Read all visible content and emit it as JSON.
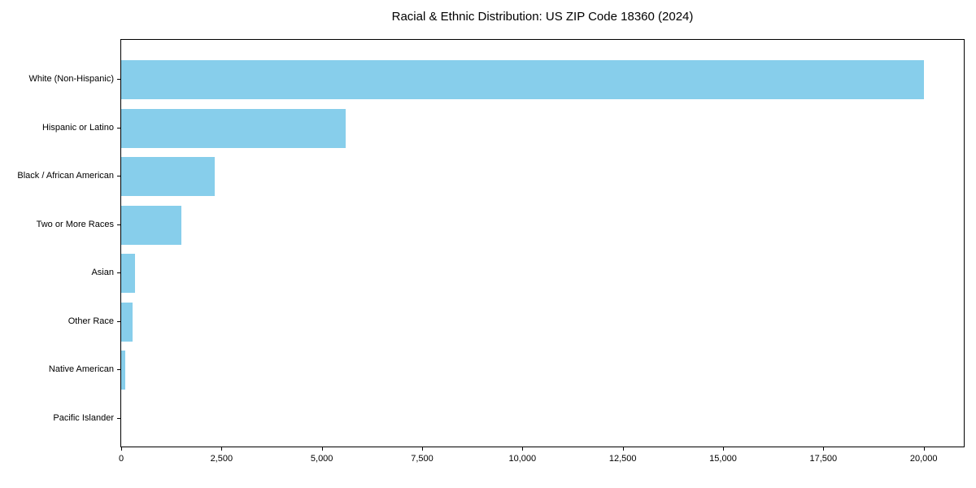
{
  "chart_data": {
    "type": "bar",
    "orientation": "horizontal",
    "title": "Racial & Ethnic Distribution: US ZIP Code 18360 (2024)",
    "categories": [
      "White (Non-Hispanic)",
      "Hispanic or Latino",
      "Black / African American",
      "Two or More Races",
      "Asian",
      "Other Race",
      "Native American",
      "Pacific Islander"
    ],
    "values": [
      20000,
      5600,
      2330,
      1500,
      340,
      280,
      110,
      0
    ],
    "xlabel": "",
    "ylabel": "",
    "xlim": [
      0,
      21000
    ],
    "xticks": [
      0,
      2500,
      5000,
      7500,
      10000,
      12500,
      15000,
      17500,
      20000
    ],
    "bar_color": "#87CEEB",
    "axis_color": "#000000",
    "background": "#FFFFFF",
    "grid": false,
    "legend": null
  }
}
